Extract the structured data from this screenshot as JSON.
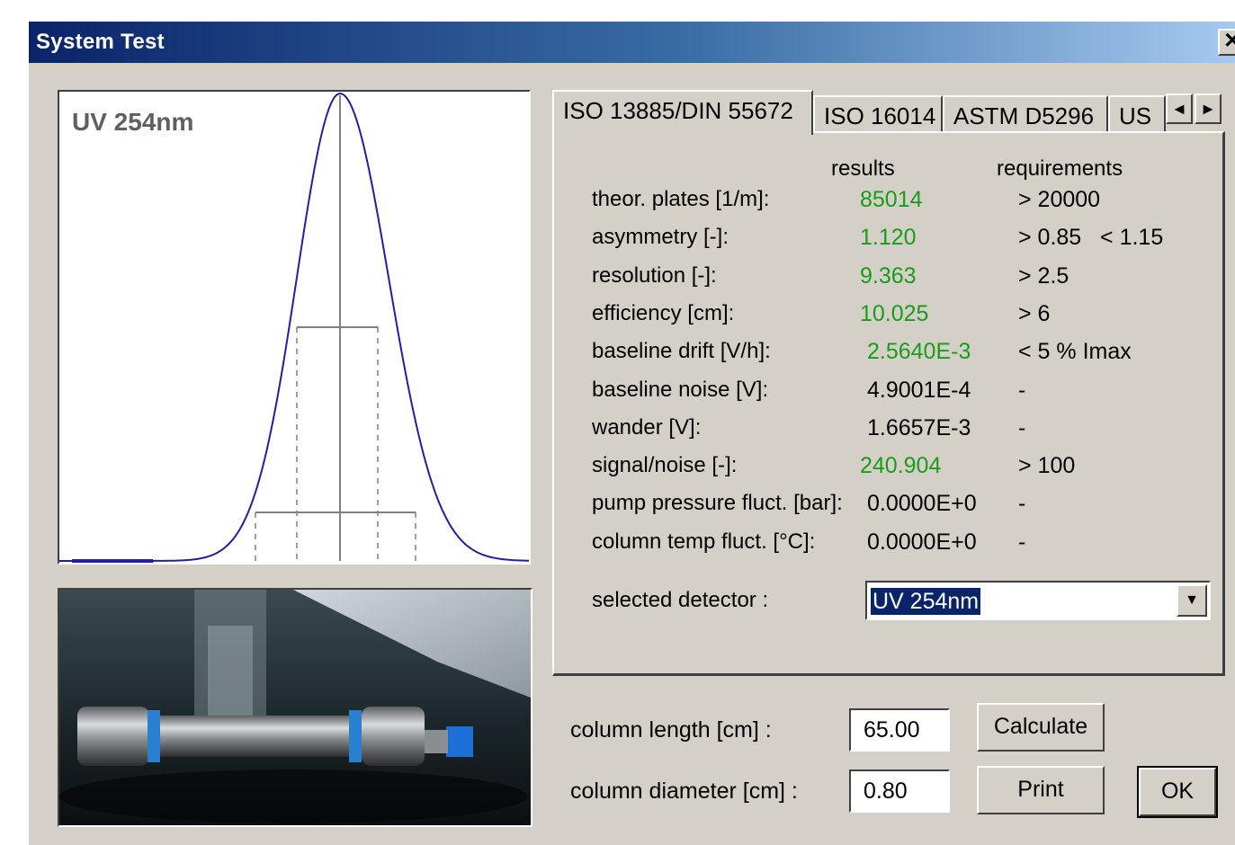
{
  "window": {
    "title": "System Test",
    "close_label": "✕"
  },
  "chart": {
    "label": "UV 254nm"
  },
  "tabs": [
    {
      "label": "ISO 13885/DIN 55672",
      "active": true
    },
    {
      "label": "ISO 16014",
      "active": false
    },
    {
      "label": "ASTM D5296",
      "active": false
    },
    {
      "label": "US",
      "active": false
    }
  ],
  "tab_scroll": {
    "left": "◄",
    "right": "►"
  },
  "headers": {
    "results": "results",
    "requirements": "requirements"
  },
  "rows": [
    {
      "label": "theor. plates [1/m]:",
      "value": "85014",
      "requirement": "> 20000",
      "pass": true
    },
    {
      "label": "asymmetry [-]:",
      "value": "1.120",
      "requirement": "> 0.85   < 1.15",
      "pass": true
    },
    {
      "label": "resolution [-]:",
      "value": "9.363",
      "requirement": "> 2.5",
      "pass": true
    },
    {
      "label": "efficiency [cm]:",
      "value": "10.025",
      "requirement": "> 6",
      "pass": true
    },
    {
      "label": "baseline drift   [V/h]:",
      "value": "2.5640E-3",
      "requirement": "< 5 % Imax",
      "pass": true
    },
    {
      "label": "baseline noise    [V]:",
      "value": "4.9001E-4",
      "requirement": "-",
      "pass": false
    },
    {
      "label": "wander    [V]:",
      "value": "1.6657E-3",
      "requirement": "-",
      "pass": false
    },
    {
      "label": "signal/noise [-]:",
      "value": "240.904",
      "requirement": "> 100",
      "pass": true
    },
    {
      "label": "pump pressure fluct. [bar]:",
      "value": "0.0000E+0",
      "requirement": "-",
      "pass": false
    },
    {
      "label": "column temp fluct. [°C]:",
      "value": "0.0000E+0",
      "requirement": "-",
      "pass": false
    }
  ],
  "detector": {
    "label": "selected detector :",
    "value": "UV 254nm"
  },
  "column_length": {
    "label": "column length [cm] :",
    "value": "65.00"
  },
  "column_diameter": {
    "label": "column diameter [cm] :",
    "value": "0.80"
  },
  "buttons": {
    "calculate": "Calculate",
    "print": "Print",
    "ok": "OK"
  },
  "colors": {
    "pass": "#1a9c1a",
    "normal": "#000000",
    "peak": "#2020a0"
  }
}
